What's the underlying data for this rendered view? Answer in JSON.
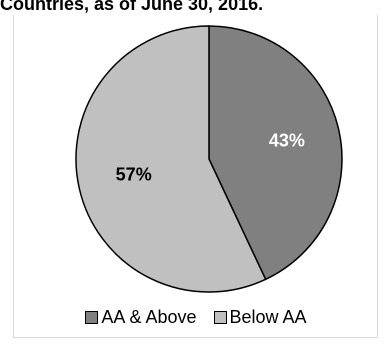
{
  "chart_data": {
    "type": "pie",
    "title": "Countries, as of June 30, 2016.",
    "slices": [
      {
        "label": "AA & Above",
        "value": 43,
        "display": "43%",
        "color": "#808080",
        "label_color": "#ffffff"
      },
      {
        "label": "Below AA",
        "value": 57,
        "display": "57%",
        "color": "#c0c0c0",
        "label_color": "#000000"
      }
    ],
    "legend_position": "bottom"
  }
}
